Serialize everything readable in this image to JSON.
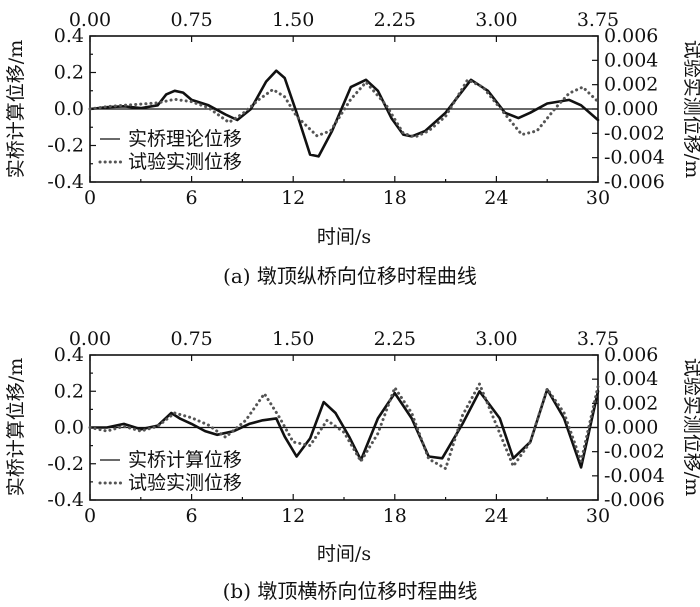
{
  "chart_data": [
    {
      "type": "line",
      "caption": "(a) 墩顶纵桥向位移时程曲线",
      "xlabel": "时间/s",
      "ylabel_left": "实桥计算位移/m",
      "ylabel_right": "试验实测位移/m",
      "xlim": [
        0,
        30
      ],
      "ylim_left": [
        -0.4,
        0.4
      ],
      "ylim_right": [
        -0.006,
        0.006
      ],
      "xlim_top": [
        0,
        3.75
      ],
      "x_ticks": [
        "0",
        "6",
        "12",
        "18",
        "24",
        "30"
      ],
      "x_top_ticks": [
        "0.00",
        "0.75",
        "1.50",
        "2.25",
        "3.00",
        "3.75"
      ],
      "y_left_ticks": [
        "-0.4",
        "-0.2",
        "0.0",
        "0.2",
        "0.4"
      ],
      "y_right_ticks": [
        "-0.006",
        "-0.004",
        "-0.002",
        "0.000",
        "0.002",
        "0.004",
        "0.006"
      ],
      "legend_position": "bottom-left",
      "series": [
        {
          "name": "实桥理论位移",
          "style": "solid",
          "axis": "left",
          "x": [
            0,
            1,
            2,
            3,
            4,
            4.5,
            5,
            5.5,
            6,
            7,
            8,
            8.7,
            9.5,
            10.4,
            11,
            11.5,
            12.2,
            13,
            13.5,
            14.3,
            15.4,
            16.3,
            17,
            17.8,
            18.5,
            19,
            19.8,
            21,
            22.5,
            23.5,
            24.5,
            25.3,
            26,
            27,
            28.3,
            29,
            30
          ],
          "y": [
            0,
            0.01,
            0.015,
            0.005,
            0.02,
            0.08,
            0.1,
            0.09,
            0.05,
            0.02,
            -0.03,
            -0.06,
            0,
            0.15,
            0.21,
            0.17,
            -0.02,
            -0.25,
            -0.26,
            -0.12,
            0.12,
            0.16,
            0.1,
            -0.05,
            -0.14,
            -0.15,
            -0.12,
            -0.02,
            0.16,
            0.1,
            -0.02,
            -0.05,
            -0.02,
            0.03,
            0.05,
            0.02,
            -0.06
          ]
        },
        {
          "name": "试验实测位移",
          "style": "dotted",
          "axis": "right",
          "x": [
            0,
            1,
            2,
            3,
            4,
            5,
            6,
            7,
            8.2,
            9,
            10,
            10.8,
            11.5,
            12.2,
            13.4,
            14.2,
            15.4,
            16.3,
            17.5,
            18.5,
            19.2,
            20,
            21,
            22.3,
            23.2,
            24.2,
            25.5,
            26.4,
            27.5,
            28.3,
            29.1,
            30
          ],
          "y": [
            0,
            0.0002,
            0.0003,
            0.0004,
            0.0005,
            0.0008,
            0.0006,
            0.0001,
            -0.0011,
            -0.0004,
            0.0008,
            0.0016,
            0.001,
            -0.0006,
            -0.0022,
            -0.0018,
            0.0008,
            0.0022,
            0.0003,
            -0.002,
            -0.0023,
            -0.0018,
            -0.0006,
            0.0024,
            0.0018,
            0.0001,
            -0.0021,
            -0.0018,
            0.0001,
            0.0013,
            0.0018,
            0.0006
          ]
        }
      ]
    },
    {
      "type": "line",
      "caption": "(b) 墩顶横桥向位移时程曲线",
      "xlabel": "时间/s",
      "ylabel_left": "实桥计算位移/m",
      "ylabel_right": "试验实测位移/m",
      "xlim": [
        0,
        30
      ],
      "ylim_left": [
        -0.4,
        0.4
      ],
      "ylim_right": [
        -0.006,
        0.006
      ],
      "xlim_top": [
        0,
        3.75
      ],
      "x_ticks": [
        "0",
        "6",
        "12",
        "18",
        "24",
        "30"
      ],
      "x_top_ticks": [
        "0.00",
        "0.75",
        "1.50",
        "2.25",
        "3.00",
        "3.75"
      ],
      "y_left_ticks": [
        "-0.4",
        "-0.2",
        "0.0",
        "0.2",
        "0.4"
      ],
      "y_right_ticks": [
        "-0.006",
        "-0.004",
        "-0.002",
        "0.000",
        "0.002",
        "0.004",
        "0.006"
      ],
      "legend_position": "bottom-left",
      "series": [
        {
          "name": "实桥计算位移",
          "style": "solid",
          "axis": "left",
          "x": [
            0,
            1,
            2,
            3,
            4,
            4.8,
            5.3,
            6,
            6.8,
            7.5,
            8.5,
            9.4,
            10.2,
            11,
            11.5,
            12.2,
            13,
            13.8,
            14.5,
            15.3,
            16,
            17,
            18,
            19,
            20,
            20.8,
            22,
            23,
            24.2,
            25,
            26,
            27,
            28,
            29,
            30
          ],
          "y": [
            0,
            0,
            0.02,
            -0.01,
            0.01,
            0.08,
            0.05,
            0.02,
            -0.02,
            -0.04,
            -0.02,
            0.02,
            0.04,
            0.05,
            -0.05,
            -0.16,
            -0.06,
            0.14,
            0.08,
            -0.05,
            -0.18,
            0.05,
            0.19,
            0.05,
            -0.16,
            -0.17,
            0.02,
            0.2,
            0.05,
            -0.17,
            -0.08,
            0.21,
            0.05,
            -0.22,
            0.2
          ]
        },
        {
          "name": "试验实测位移",
          "style": "dotted",
          "axis": "right",
          "x": [
            0,
            1,
            2,
            3,
            4,
            5,
            6,
            7,
            8,
            9.2,
            10.3,
            11.2,
            12,
            13,
            14,
            15,
            16,
            17,
            18,
            19,
            20,
            21,
            22,
            23,
            24,
            25,
            26,
            27,
            28,
            29,
            30
          ],
          "y": [
            0,
            -0.0003,
            0.0001,
            -0.0003,
            0.0001,
            0.0012,
            0.0008,
            0.0002,
            -0.0008,
            0.0006,
            0.0028,
            0.0008,
            -0.0012,
            -0.0015,
            0.0006,
            -0.0004,
            -0.0028,
            -0.0005,
            0.0033,
            0.0012,
            -0.0026,
            -0.0034,
            0.001,
            0.0036,
            0.0002,
            -0.0032,
            -0.0012,
            0.0032,
            0.0012,
            -0.0028,
            0.0034
          ]
        }
      ]
    }
  ]
}
